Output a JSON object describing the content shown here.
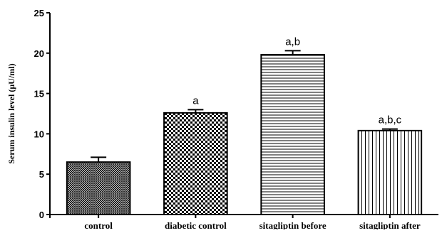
{
  "chart_data": {
    "type": "bar",
    "title": "",
    "xlabel": "",
    "ylabel": "Serum insulin level (µU/ml)",
    "ylim": [
      0,
      25
    ],
    "yticks": [
      "0",
      "5",
      "10",
      "15",
      "20",
      "25"
    ],
    "grid": false,
    "categories": [
      "control",
      "diabetic control",
      "sitagliptin before",
      "sitagliptin after"
    ],
    "values": [
      6.5,
      12.6,
      19.8,
      10.4
    ],
    "errors": [
      0.6,
      0.4,
      0.5,
      0.2
    ],
    "annotations": [
      "",
      "a",
      "a,b",
      "a,b,c"
    ],
    "patterns": [
      "fine-crosshatch",
      "checkerboard",
      "horizontal-lines",
      "vertical-lines"
    ]
  }
}
